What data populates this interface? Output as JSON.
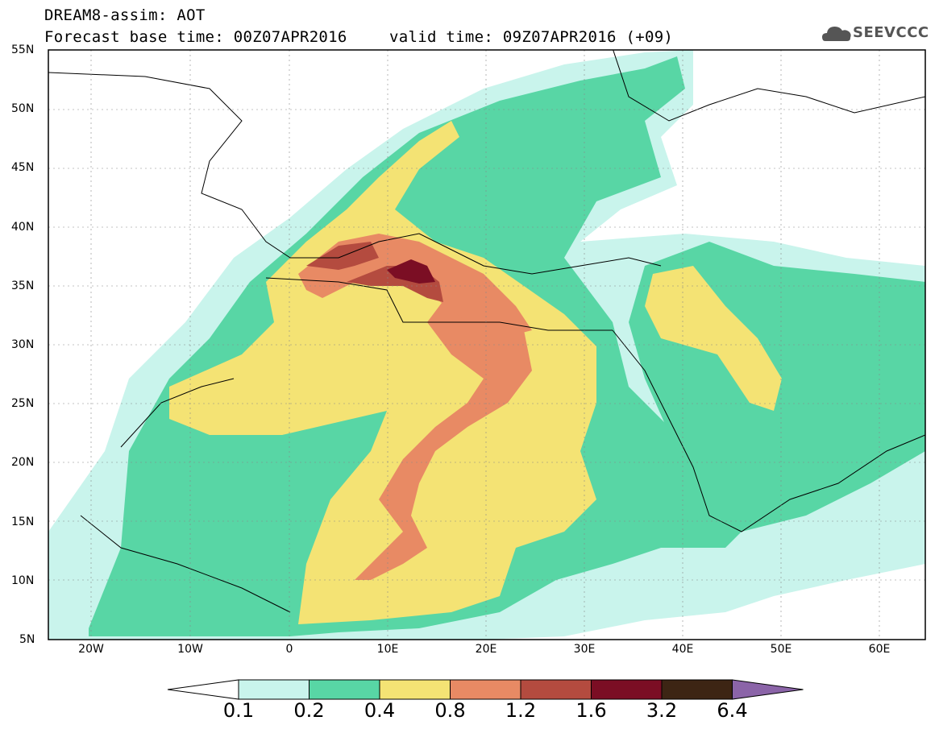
{
  "title_line1": "DREAM8-assim: AOT",
  "title_line2_left": "Forecast base time: 00Z07APR2016",
  "title_line2_right": "valid time: 09Z07APR2016 (+09)",
  "logo_text": "SEEVCCC",
  "logo_icon": "cloud-icon",
  "map": {
    "lat_labels": [
      "55N",
      "50N",
      "45N",
      "40N",
      "35N",
      "30N",
      "25N",
      "20N",
      "15N",
      "10N",
      "5N"
    ],
    "lon_labels": [
      "20W",
      "10W",
      "0",
      "10E",
      "20E",
      "30E",
      "40E",
      "50E",
      "60E"
    ]
  },
  "colorbar": {
    "colors": [
      "#c9f4ec",
      "#58d6a5",
      "#f4e374",
      "#e88a64",
      "#b44b3f",
      "#7b0e24",
      "#3d2514",
      "#8b64a8"
    ],
    "labels": [
      "0.1",
      "0.2",
      "0.4",
      "0.8",
      "1.2",
      "1.6",
      "3.2",
      "6.4"
    ]
  }
}
